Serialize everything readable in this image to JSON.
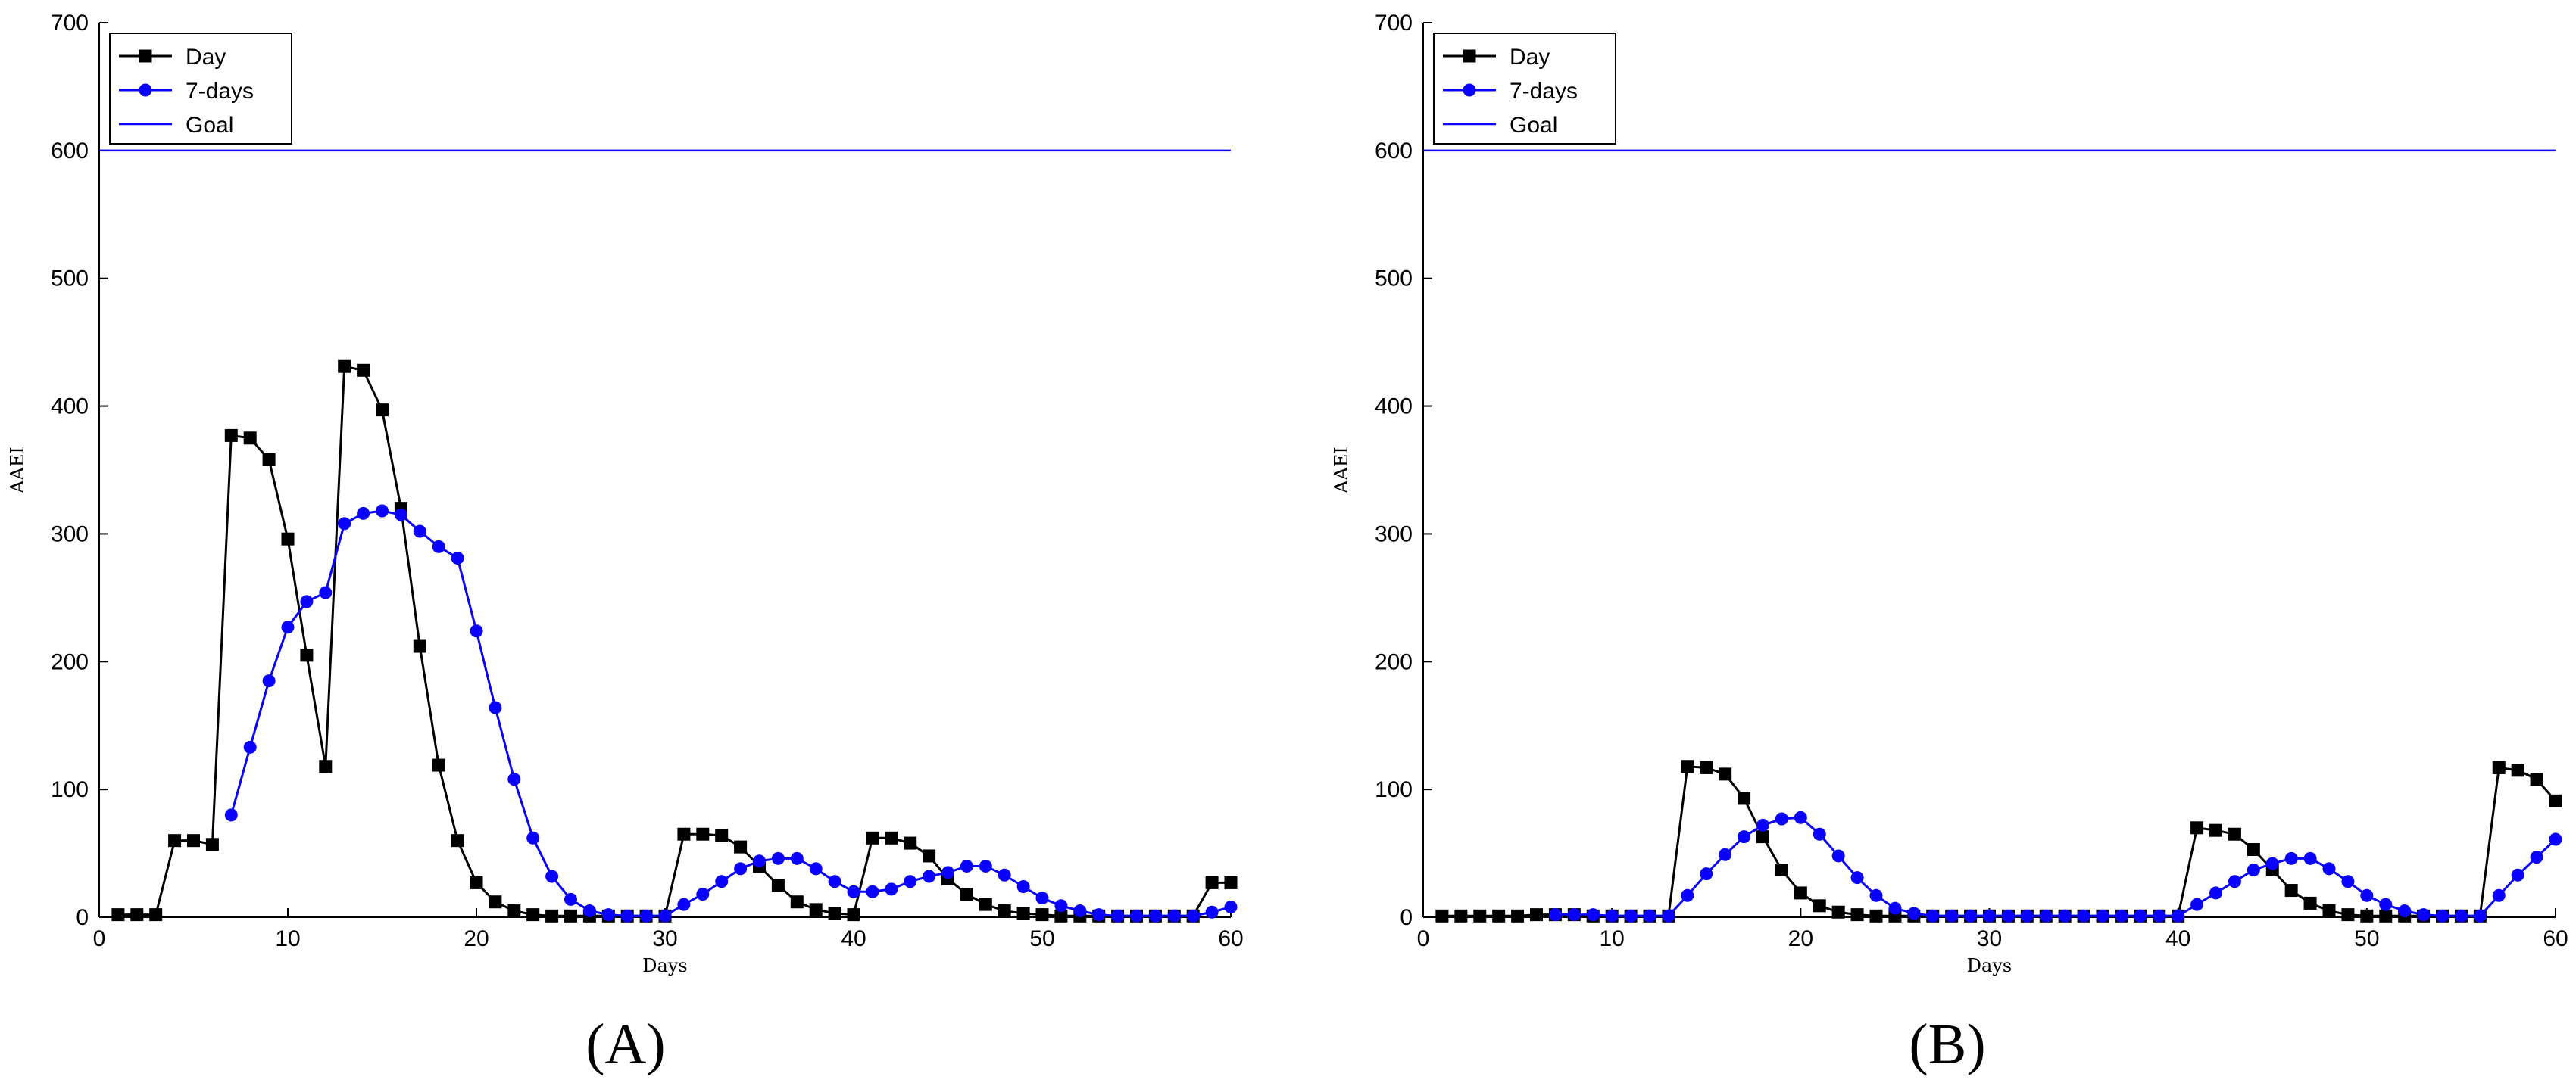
{
  "chart_data": [
    {
      "type": "line",
      "panel_label": "(A)",
      "xlabel": "Days",
      "ylabel": "AAEI",
      "xlim": [
        0,
        60
      ],
      "ylim": [
        0,
        700
      ],
      "xticks": [
        0,
        10,
        20,
        30,
        40,
        50,
        60
      ],
      "yticks": [
        0,
        100,
        200,
        300,
        400,
        500,
        600,
        700
      ],
      "legend": {
        "placement": "top-left",
        "entries": [
          "Day",
          "7-days",
          "Goal"
        ]
      },
      "goal": 600,
      "series": [
        {
          "name": "Day",
          "color": "#000000",
          "marker": "square",
          "x": [
            1,
            2,
            3,
            4,
            5,
            6,
            7,
            8,
            9,
            10,
            11,
            12,
            13,
            14,
            15,
            16,
            17,
            18,
            19,
            20,
            21,
            22,
            23,
            24,
            25,
            26,
            27,
            28,
            29,
            30,
            31,
            32,
            33,
            34,
            35,
            36,
            37,
            38,
            39,
            40,
            41,
            42,
            43,
            44,
            45,
            46,
            47,
            48,
            49,
            50,
            51,
            52,
            53,
            54,
            55,
            56,
            57,
            58,
            59,
            60
          ],
          "y": [
            2,
            2,
            2,
            60,
            60,
            57,
            377,
            375,
            358,
            296,
            205,
            118,
            431,
            428,
            397,
            320,
            212,
            119,
            60,
            27,
            12,
            5,
            2,
            1,
            1,
            1,
            1,
            1,
            1,
            1,
            65,
            65,
            64,
            55,
            40,
            25,
            12,
            6,
            3,
            2,
            62,
            62,
            58,
            48,
            30,
            18,
            10,
            5,
            3,
            2,
            1,
            1,
            1,
            1,
            1,
            1,
            1,
            1,
            27,
            27
          ]
        },
        {
          "name": "7-days",
          "color": "#0a00ff",
          "marker": "circle",
          "x": [
            7,
            8,
            9,
            10,
            11,
            12,
            13,
            14,
            15,
            16,
            17,
            18,
            19,
            20,
            21,
            22,
            23,
            24,
            25,
            26,
            27,
            28,
            29,
            30,
            31,
            32,
            33,
            34,
            35,
            36,
            37,
            38,
            39,
            40,
            41,
            42,
            43,
            44,
            45,
            46,
            47,
            48,
            49,
            50,
            51,
            52,
            53,
            54,
            55,
            56,
            57,
            58,
            59,
            60
          ],
          "y": [
            80,
            133,
            185,
            227,
            247,
            254,
            308,
            316,
            318,
            315,
            302,
            290,
            281,
            224,
            164,
            108,
            62,
            32,
            14,
            5,
            2,
            1,
            1,
            1,
            10,
            18,
            28,
            38,
            44,
            46,
            46,
            38,
            28,
            20,
            20,
            22,
            28,
            32,
            35,
            40,
            40,
            33,
            24,
            15,
            9,
            5,
            2,
            1,
            1,
            1,
            1,
            1,
            4,
            8
          ]
        }
      ]
    },
    {
      "type": "line",
      "panel_label": "(B)",
      "xlabel": "Days",
      "ylabel": "AAEI",
      "xlim": [
        0,
        60
      ],
      "ylim": [
        0,
        700
      ],
      "xticks": [
        0,
        10,
        20,
        30,
        40,
        50,
        60
      ],
      "yticks": [
        0,
        100,
        200,
        300,
        400,
        500,
        600,
        700
      ],
      "legend": {
        "placement": "top-left",
        "entries": [
          "Day",
          "7-days",
          "Goal"
        ]
      },
      "goal": 600,
      "series": [
        {
          "name": "Day",
          "color": "#000000",
          "marker": "square",
          "x": [
            1,
            2,
            3,
            4,
            5,
            6,
            7,
            8,
            9,
            10,
            11,
            12,
            13,
            14,
            15,
            16,
            17,
            18,
            19,
            20,
            21,
            22,
            23,
            24,
            25,
            26,
            27,
            28,
            29,
            30,
            31,
            32,
            33,
            34,
            35,
            36,
            37,
            38,
            39,
            40,
            41,
            42,
            43,
            44,
            45,
            46,
            47,
            48,
            49,
            50,
            51,
            52,
            53,
            54,
            55,
            56,
            57,
            58,
            59,
            60
          ],
          "y": [
            1,
            1,
            1,
            1,
            1,
            2,
            2,
            2,
            1,
            1,
            1,
            1,
            1,
            118,
            117,
            112,
            93,
            63,
            37,
            19,
            9,
            4,
            2,
            1,
            1,
            1,
            1,
            1,
            1,
            1,
            1,
            1,
            1,
            1,
            1,
            1,
            1,
            1,
            1,
            1,
            70,
            68,
            65,
            53,
            37,
            21,
            11,
            5,
            2,
            1,
            1,
            1,
            1,
            1,
            1,
            1,
            117,
            115,
            108,
            91
          ]
        },
        {
          "name": "7-days",
          "color": "#0a00ff",
          "marker": "circle",
          "x": [
            7,
            8,
            9,
            10,
            11,
            12,
            13,
            14,
            15,
            16,
            17,
            18,
            19,
            20,
            21,
            22,
            23,
            24,
            25,
            26,
            27,
            28,
            29,
            30,
            31,
            32,
            33,
            34,
            35,
            36,
            37,
            38,
            39,
            40,
            41,
            42,
            43,
            44,
            45,
            46,
            47,
            48,
            49,
            50,
            51,
            52,
            53,
            54,
            55,
            56,
            57,
            58,
            59,
            60
          ],
          "y": [
            2,
            2,
            2,
            1,
            1,
            1,
            1,
            17,
            34,
            49,
            63,
            72,
            77,
            78,
            65,
            48,
            31,
            17,
            7,
            3,
            1,
            1,
            1,
            1,
            1,
            1,
            1,
            1,
            1,
            1,
            1,
            1,
            1,
            1,
            10,
            19,
            28,
            37,
            42,
            46,
            46,
            38,
            28,
            17,
            10,
            5,
            2,
            1,
            1,
            1,
            17,
            33,
            47,
            61
          ]
        }
      ]
    }
  ]
}
